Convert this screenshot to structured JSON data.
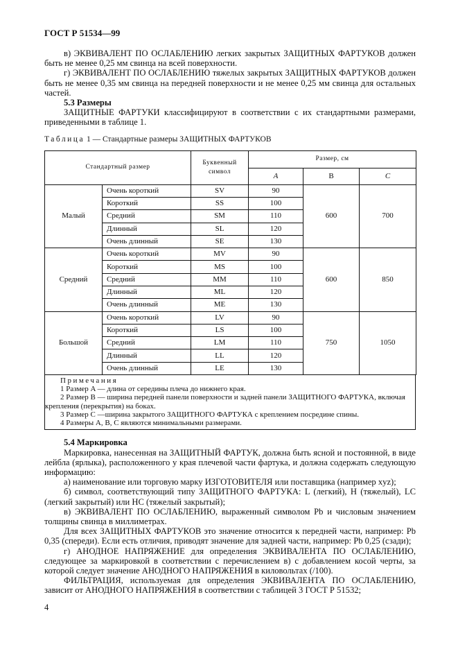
{
  "header": "ГОСТ Р 51534—99",
  "top_paragraphs": [
    "в) ЭКВИВАЛЕНТ ПО ОСЛАБЛЕНИЮ легких закрытых ЗАЩИТНЫХ ФАРТУКОВ должен быть не менее 0,25 мм свинца на всей поверхности.",
    "г) ЭКВИВАЛЕНТ ПО ОСЛАБЛЕНИЮ тяжелых закрытых ЗАЩИТНЫХ ФАРТУКОВ должен быть не менее 0,35 мм свинца на передней поверхности и не менее 0,25 мм свинца для остальных частей."
  ],
  "section_5_3": {
    "title": "5.3 Размеры",
    "text": "ЗАЩИТНЫЕ ФАРТУКИ классифицируют в соответствии с их стандартными размерами, приведенными в таблице 1."
  },
  "table_caption": {
    "label": "Таблица",
    "rest": " 1 — Стандартные размеры ЗАЩИТНЫХ ФАРТУКОВ"
  },
  "table": {
    "h_size": "Стандартный размер",
    "h_symbol": "Буквенный символ",
    "h_dims": "Размер, см",
    "h_a": "A",
    "h_b": "B",
    "h_c": "C",
    "groups": [
      {
        "name": "Малый",
        "b": "600",
        "c": "700",
        "rows": [
          [
            "Очень короткий",
            "SV",
            "90"
          ],
          [
            "Короткий",
            "SS",
            "100"
          ],
          [
            "Средний",
            "SM",
            "110"
          ],
          [
            "Длинный",
            "SL",
            "120"
          ],
          [
            "Очень длинный",
            "SE",
            "130"
          ]
        ]
      },
      {
        "name": "Средний",
        "b": "600",
        "c": "850",
        "rows": [
          [
            "Очень короткий",
            "MV",
            "90"
          ],
          [
            "Короткий",
            "MS",
            "100"
          ],
          [
            "Средний",
            "MM",
            "110"
          ],
          [
            "Длинный",
            "ML",
            "120"
          ],
          [
            "Очень длинный",
            "ME",
            "130"
          ]
        ]
      },
      {
        "name": "Большой",
        "b": "750",
        "c": "1050",
        "rows": [
          [
            "Очень короткий",
            "LV",
            "90"
          ],
          [
            "Короткий",
            "LS",
            "100"
          ],
          [
            "Средний",
            "LM",
            "110"
          ],
          [
            "Длинный",
            "LL",
            "120"
          ],
          [
            "Очень длинный",
            "LE",
            "130"
          ]
        ]
      }
    ]
  },
  "notes": {
    "title": "Примечания",
    "items": [
      "1 Размер  A — длина от середины плеча до нижнего края.",
      "2 Размер B — ширина передней панели поверхности и задней панели ЗАЩИТНОГО ФАРТУКА, включая крепления (перекрытия) на боках.",
      "3 Размер C —ширина закрытого ЗАЩИТНОГО ФАРТУКА с креплением посредине спины.",
      "4 Размеры A, B, C являются минимальными размерами."
    ]
  },
  "section_5_4": {
    "title": "5.4 Маркировка",
    "paragraphs": [
      "Маркировка, нанесенная на ЗАЩИТНЫЙ ФАРТУК, должна быть ясной и постоянной, в виде лейбла (ярлыка), расположенного у края плечевой части фартука, и должна содержать следующую информацию:",
      "а) наименование или торговую марку ИЗГОТОВИТЕЛЯ или поставщика (например xyz);",
      "б) символ, соответствующий типу ЗАЩИТНОГО ФАРТУКА: L (легкий), H (тяжелый), LC (легкий закрытый) или HC (тяжелый закрытый);",
      "в) ЭКВИВАЛЕНТ ПО ОСЛАБЛЕНИЮ, выраженный символом Pb и числовым значением толщины свинца в миллиметрах.",
      "Для всех ЗАЩИТНЫХ ФАРТУКОВ это значение относится к передней части, например: Pb 0,35 (спереди). Если есть отличия, приводят значение для задней части, например: Pb 0,25 (сзади);",
      "г) АНОДНОЕ НАПРЯЖЕНИЕ для определения ЭКВИВАЛЕНТА ПО ОСЛАБЛЕНИЮ, следующее за маркировкой в соответствии с перечислением в) с добавлением косой черты, за которой следует значение АНОДНОГО НАПРЯЖЕНИЯ в киловольтах (/100).",
      "ФИЛЬТРАЦИЯ, используемая для определения ЭКВИВАЛЕНТА ПО ОСЛАБЛЕНИЮ, зависит от АНОДНОГО НАПРЯЖЕНИЯ в соответствии с таблицей 3 ГОСТ Р 51532;"
    ]
  },
  "page_number": "4"
}
